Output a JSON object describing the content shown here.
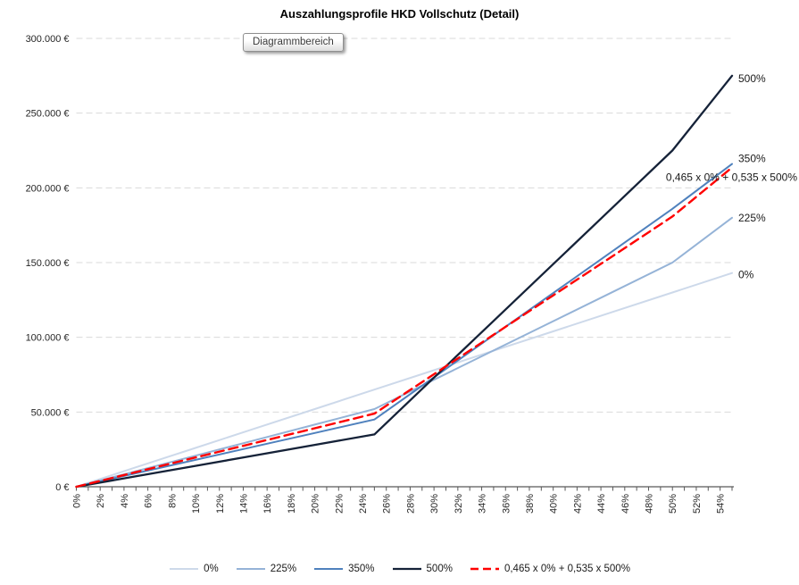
{
  "title": "Auszahlungsprofile HKD Vollschutz (Detail)",
  "tooltip": "Diagrammbereich",
  "colors": {
    "grid": "#d9d9d9",
    "axis": "#595959",
    "tick_text": "#262626",
    "label_text": "#1a1a1a"
  },
  "chart_data": {
    "type": "line",
    "title": "Auszahlungsprofile HKD Vollschutz (Detail)",
    "xlabel": "",
    "ylabel": "",
    "x_unit": "%",
    "x_range": [
      0,
      55
    ],
    "y_range": [
      0,
      300000
    ],
    "grid": "horizontal-dashed",
    "legend_position": "bottom",
    "x": [
      0,
      5,
      10,
      15,
      20,
      25,
      30,
      35,
      40,
      45,
      50,
      55
    ],
    "x_minor_tick_step": 1,
    "x_tick_labels": [
      "0%",
      "2%",
      "4%",
      "6%",
      "8%",
      "10%",
      "12%",
      "14%",
      "16%",
      "18%",
      "20%",
      "22%",
      "24%",
      "26%",
      "28%",
      "30%",
      "32%",
      "34%",
      "36%",
      "38%",
      "40%",
      "42%",
      "44%",
      "46%",
      "48%",
      "50%",
      "52%",
      "54%"
    ],
    "y_tick_labels": [
      "0 €",
      "50.000 €",
      "100.000 €",
      "150.000 €",
      "200.000 €",
      "250.000 €",
      "300.000 €"
    ],
    "series": [
      {
        "name": "0%",
        "color": "#cdd9ea",
        "width": 2,
        "dash": "",
        "values": [
          0,
          13000,
          26000,
          39000,
          52000,
          65000,
          78000,
          91000,
          104000,
          117000,
          130000,
          143000
        ]
      },
      {
        "name": "225%",
        "color": "#95b3d7",
        "width": 2,
        "dash": "",
        "values": [
          0,
          10400,
          20800,
          31200,
          41600,
          52000,
          71600,
          91200,
          110800,
          130400,
          150000,
          180000
        ]
      },
      {
        "name": "350%",
        "color": "#4f81bd",
        "width": 2,
        "dash": "",
        "values": [
          0,
          9000,
          18000,
          27000,
          36000,
          45000,
          73200,
          101400,
          129600,
          157800,
          186000,
          216000
        ]
      },
      {
        "name": "500%",
        "color": "#152238",
        "width": 2.3,
        "dash": "",
        "values": [
          0,
          7000,
          14000,
          21000,
          28000,
          35000,
          73000,
          111000,
          149000,
          187000,
          225000,
          275000
        ]
      },
      {
        "name": "0,465 x 0% + 0,535 x 500%",
        "color": "#ff0000",
        "width": 2.4,
        "dash": "10 6",
        "values": [
          0,
          9790,
          19580,
          29370,
          39160,
          48950,
          75325,
          101700,
          128075,
          154450,
          180825,
          213620
        ]
      }
    ]
  }
}
